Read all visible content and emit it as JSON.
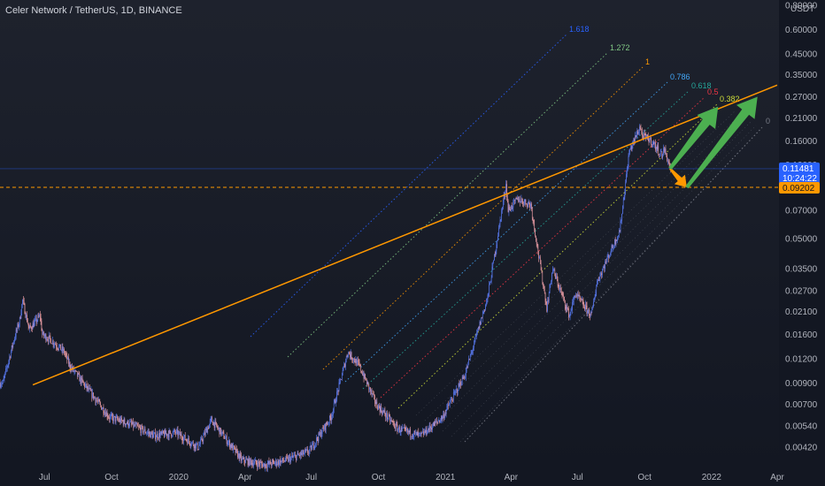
{
  "header": {
    "title": "Celer Network / TetherUS, 1D, BINANCE"
  },
  "colors": {
    "background": "#131722",
    "up": "#5b7cf5",
    "down": "#f0a0a8",
    "trendline": "#ff9800",
    "target_arrow": "#4caf50",
    "down_arrow": "#ff9800",
    "current_price_tag": "#2962ff",
    "level_tag": "#ff9800"
  },
  "chart_data": {
    "type": "candlestick",
    "title": "Celer Network / TetherUS, 1D, BINANCE",
    "scale": "log",
    "y_axis_unit": "USDT",
    "y_ticks": [
      "0.80000",
      "0.60000",
      "0.45000",
      "0.35000",
      "0.27000",
      "0.21000",
      "0.16000",
      "0.12000",
      "0.09000",
      "0.07000",
      "0.05000",
      "0.03500",
      "0.02700",
      "0.02100",
      "0.01600",
      "0.01200",
      "0.00900",
      "0.00700",
      "0.00540",
      "0.00420"
    ],
    "x_ticks": [
      "Jul",
      "Oct",
      "2020",
      "Apr",
      "Jul",
      "Oct",
      "2021",
      "Apr",
      "Jul",
      "Oct",
      "2022",
      "Apr"
    ],
    "price_series_month_end": [
      {
        "date": "2019-05",
        "close": 0.019
      },
      {
        "date": "2019-06",
        "close": 0.016
      },
      {
        "date": "2019-07",
        "close": 0.013
      },
      {
        "date": "2019-08",
        "close": 0.0085
      },
      {
        "date": "2019-09",
        "close": 0.006
      },
      {
        "date": "2019-10",
        "close": 0.0055
      },
      {
        "date": "2019-11",
        "close": 0.0048
      },
      {
        "date": "2019-12",
        "close": 0.005
      },
      {
        "date": "2020-01",
        "close": 0.0042
      },
      {
        "date": "2020-02",
        "close": 0.005
      },
      {
        "date": "2020-03",
        "close": 0.0036
      },
      {
        "date": "2020-04",
        "close": 0.0034
      },
      {
        "date": "2020-05",
        "close": 0.0036
      },
      {
        "date": "2020-06",
        "close": 0.004
      },
      {
        "date": "2020-07",
        "close": 0.006
      },
      {
        "date": "2020-08",
        "close": 0.012
      },
      {
        "date": "2020-09",
        "close": 0.007
      },
      {
        "date": "2020-10",
        "close": 0.0052
      },
      {
        "date": "2020-11",
        "close": 0.0048
      },
      {
        "date": "2020-12",
        "close": 0.006
      },
      {
        "date": "2021-01",
        "close": 0.01
      },
      {
        "date": "2021-02",
        "close": 0.025
      },
      {
        "date": "2021-03",
        "close": 0.07
      },
      {
        "date": "2021-04",
        "close": 0.075
      },
      {
        "date": "2021-05",
        "close": 0.035
      },
      {
        "date": "2021-06",
        "close": 0.026
      },
      {
        "date": "2021-07",
        "close": 0.03
      },
      {
        "date": "2021-08",
        "close": 0.055
      },
      {
        "date": "2021-09",
        "close": 0.17
      },
      {
        "date": "2021-10",
        "close": 0.145
      },
      {
        "date": "2021-11",
        "close": 0.1148
      }
    ],
    "current_price": {
      "value": "0.11481",
      "countdown": "10:24:22"
    },
    "horizontal_level": {
      "value": "0.09202"
    },
    "trendline": {
      "from": {
        "date": "2019-06-15",
        "price": 0.0088
      },
      "to": {
        "date": "2022-04-01",
        "price": 0.31
      }
    },
    "fib_channel_levels": [
      {
        "label": "1.618",
        "color": "#2962ff"
      },
      {
        "label": "1.272",
        "color": "#81c784"
      },
      {
        "label": "1",
        "color": "#ff9800"
      },
      {
        "label": "0.786",
        "color": "#42a5f5"
      },
      {
        "label": "0.618",
        "color": "#26a69a"
      },
      {
        "label": "0.5",
        "color": "#f23645"
      },
      {
        "label": "0.382",
        "color": "#cddc39"
      },
      {
        "label": "0",
        "color": "#787b86"
      }
    ],
    "annotations": [
      {
        "type": "arrow",
        "direction": "down",
        "color": "#ff9800",
        "from": {
          "date": "2021-11-05",
          "price": 0.115
        },
        "to": {
          "date": "2021-11-28",
          "price": 0.092
        }
      },
      {
        "type": "arrow",
        "direction": "up",
        "color": "#4caf50",
        "from": {
          "date": "2021-11-05",
          "price": 0.115
        },
        "to": {
          "date": "2022-01-10",
          "price": 0.24
        }
      },
      {
        "type": "arrow",
        "direction": "up",
        "color": "#4caf50",
        "from": {
          "date": "2021-11-28",
          "price": 0.092
        },
        "to": {
          "date": "2022-03-05",
          "price": 0.27
        }
      }
    ],
    "grid": false
  }
}
